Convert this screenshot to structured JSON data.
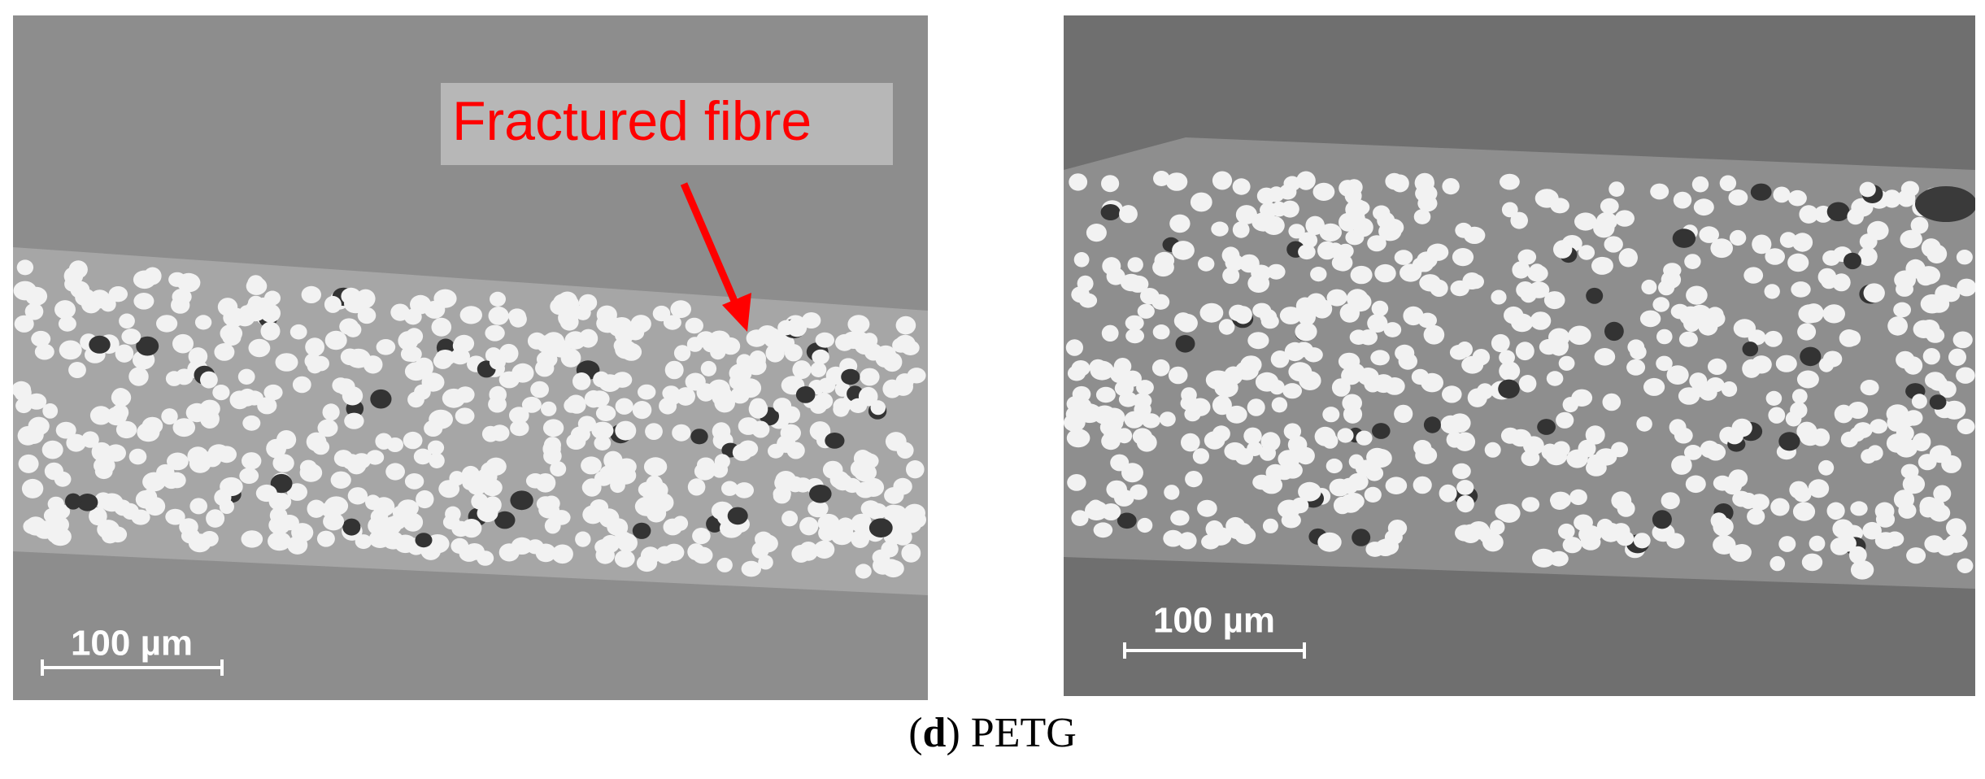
{
  "panels": [
    {
      "annotation": "Fractured fibre",
      "scale_bar": "100 µm"
    },
    {
      "scale_bar": "100 µm"
    }
  ],
  "caption": {
    "prefix": "(",
    "label": "d",
    "suffix": ") PETG"
  }
}
